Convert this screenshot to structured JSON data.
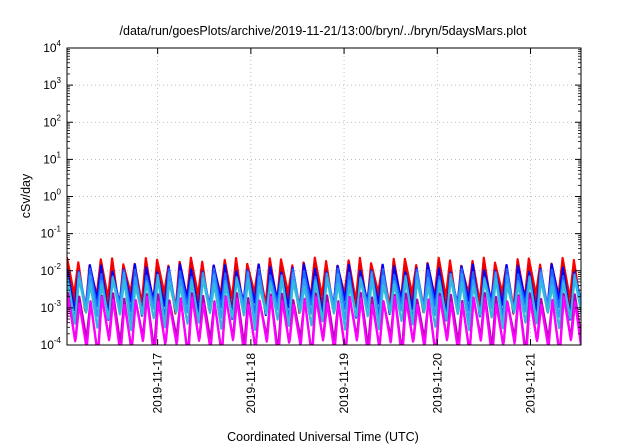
{
  "chart_data": {
    "type": "line",
    "title": "/data/run/goesPlots/archive/2019-11-21/13:00/bryn/../bryn/5daysMars.plot",
    "xlabel": "Coordinated Universal Time (UTC)",
    "ylabel": "cSv/day",
    "yscale": "log",
    "ylim": [
      0.0001,
      10000
    ],
    "xlim": [
      "2019-11-16T00:40",
      "2019-11-21T13:00"
    ],
    "x_ticks": [
      "2019-11-17",
      "2019-11-18",
      "2019-11-19",
      "2019-11-20",
      "2019-11-21"
    ],
    "y_ticks": [
      {
        "base": "10",
        "exp": "4"
      },
      {
        "base": "10",
        "exp": "3"
      },
      {
        "base": "10",
        "exp": "2"
      },
      {
        "base": "10",
        "exp": "1"
      },
      {
        "base": "10",
        "exp": "0"
      },
      {
        "base": "10",
        "exp": "-1"
      },
      {
        "base": "10",
        "exp": "-2"
      },
      {
        "base": "10",
        "exp": "-3"
      },
      {
        "base": "10",
        "exp": "-4"
      }
    ],
    "grid": true,
    "legend": "none",
    "sawtooth_period_hours": 2.9,
    "series": [
      {
        "color": "#ff0000",
        "values": [
          0.018,
          0.0018
        ]
      },
      {
        "color": "#e60000",
        "values": [
          0.014,
          0.0014
        ]
      },
      {
        "color": "#0000ff",
        "values": [
          0.012,
          0.0012
        ]
      },
      {
        "color": "#1e64ff",
        "values": [
          0.009,
          0.0009
        ]
      },
      {
        "color": "#3399ff",
        "values": [
          0.007,
          0.0007
        ]
      },
      {
        "color": "#33bbdd",
        "values": [
          0.005,
          0.0005
        ]
      },
      {
        "color": "#b300b3",
        "values": [
          0.002,
          0.00012
        ]
      },
      {
        "color": "#ff00ff",
        "values": [
          0.0016,
          9e-05
        ]
      }
    ]
  }
}
